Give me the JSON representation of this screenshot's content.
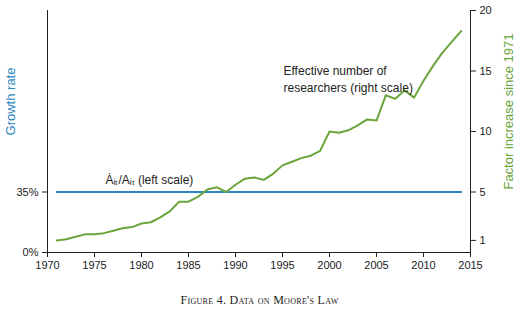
{
  "chart_data": {
    "type": "line",
    "title": "Figure 4. Data on Moore's Law",
    "ylabel": "Growth rate",
    "y2label": "Factor increase since 1971",
    "xlim": [
      1970,
      2015
    ],
    "xticks": [
      1970,
      1975,
      1980,
      1985,
      1990,
      1995,
      2000,
      2005,
      2010,
      2015
    ],
    "ylim": [
      0,
      140
    ],
    "yticks": [
      {
        "value": 0,
        "label": "0%"
      },
      {
        "value": 35,
        "label": "35%"
      }
    ],
    "y2lim": [
      0,
      20
    ],
    "y2ticks": [
      1,
      5,
      10,
      15,
      20
    ],
    "series": [
      {
        "name": "Ȧᵢₜ/Aᵢₜ (left scale)",
        "color": "#2e86c1",
        "x": [
          1971,
          2014
        ],
        "values": [
          35,
          35
        ]
      },
      {
        "name": "Effective number of\nresearchers (right scale)",
        "color": "#6aa53b",
        "axis": "y2",
        "x": [
          1971,
          1972,
          1973,
          1974,
          1975,
          1976,
          1977,
          1978,
          1979,
          1980,
          1981,
          1982,
          1983,
          1984,
          1985,
          1986,
          1987,
          1988,
          1989,
          1990,
          1991,
          1992,
          1993,
          1994,
          1995,
          1996,
          1997,
          1998,
          1999,
          2000,
          2001,
          2002,
          2003,
          2004,
          2005,
          2006,
          2007,
          2008,
          2009,
          2010,
          2011,
          2012,
          2013,
          2014
        ],
        "values": [
          1.0,
          1.1,
          1.3,
          1.5,
          1.5,
          1.6,
          1.8,
          2.0,
          2.1,
          2.4,
          2.5,
          2.9,
          3.4,
          4.2,
          4.2,
          4.6,
          5.2,
          5.4,
          5.0,
          5.6,
          6.1,
          6.2,
          6.0,
          6.5,
          7.2,
          7.5,
          7.8,
          8.0,
          8.4,
          10.0,
          9.9,
          10.1,
          10.5,
          11.0,
          10.9,
          13.0,
          12.7,
          13.4,
          12.8,
          14.2,
          15.4,
          16.5,
          17.4,
          18.3
        ]
      }
    ]
  }
}
